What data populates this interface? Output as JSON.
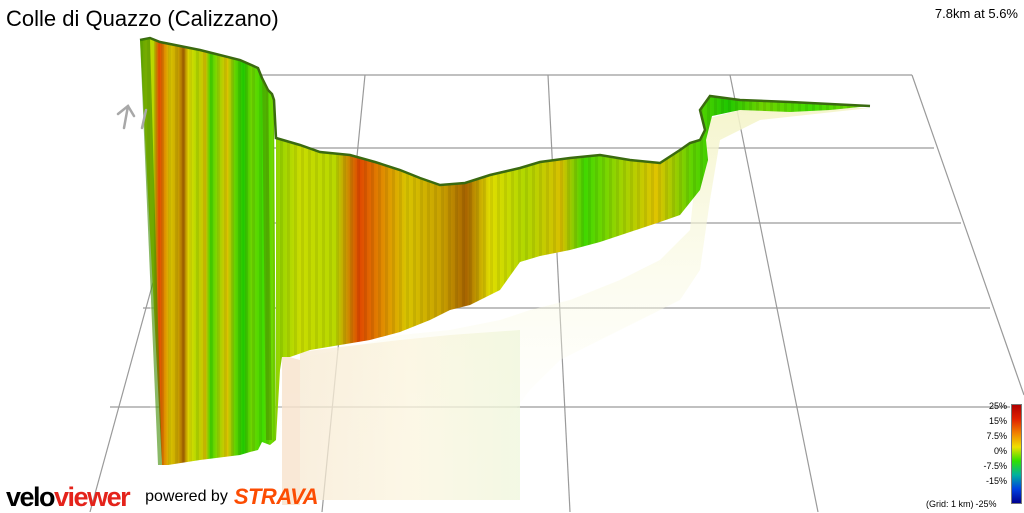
{
  "title": "Colle di Quazzo (Calizzano)",
  "summary": "7.8km at 5.6%",
  "branding": {
    "velo": "velo",
    "viewer": "viewer",
    "powered_by": "powered by",
    "strava": "STRAVA"
  },
  "legend": {
    "ticks": [
      "25%",
      "15%",
      "7.5%",
      "0%",
      "-7.5%",
      "-15%"
    ],
    "grid_note": "(Grid: 1 km)",
    "bottom_tick": "-25%",
    "colors": [
      "#b00000",
      "#e02000",
      "#f08000",
      "#f0e000",
      "#30e000",
      "#00b0a0",
      "#0040e0",
      "#000090"
    ]
  },
  "icons": {
    "north_arrow": "up-arrow-icon"
  }
}
